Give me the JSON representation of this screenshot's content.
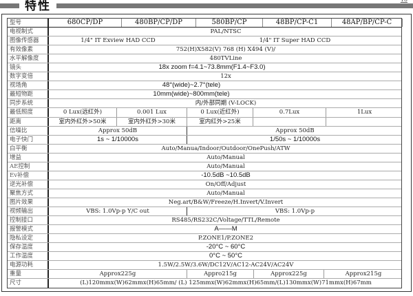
{
  "header": {
    "title": "特性",
    "page_number": "18"
  },
  "rows": [
    {
      "label": "型号",
      "cells": [
        "680CP/DP",
        "480BP/CP/DP",
        "580BP/CP",
        "48BP/CP-C1",
        "48AP/BP/CP-C"
      ]
    },
    {
      "label": "电视制式",
      "cells": [
        "PAL/NTSC"
      ]
    },
    {
      "label": "图像传感器",
      "cells": [
        "1/4\" IT Exview HAD CCD",
        "1/4\" IT Super HAD CCD"
      ]
    },
    {
      "label": "有效像素",
      "cells": [
        "752(H)X582(V)    768 (H) X494 (V)/"
      ]
    },
    {
      "label": "水平解像度",
      "cells": [
        "480TVLine"
      ]
    },
    {
      "label": "镜头",
      "cells": [
        "18x zoom f=4.1~73.8mm(F1.4~F3.0)"
      ]
    },
    {
      "label": "数字变倍",
      "cells": [
        "12x"
      ]
    },
    {
      "label": "视场角",
      "cells": [
        "48°(wide)~2.7°(tele)"
      ]
    },
    {
      "label": "最短物距",
      "cells": [
        "10mm(wide)~800mm(tele)"
      ]
    },
    {
      "label": "同步系统",
      "cells": [
        "内/外部同期 (V-LOCK)"
      ]
    },
    {
      "label": "最低照度",
      "cells": [
        "0 Lux(远红外)",
        "0.001 Lux",
        "0 Lux(近红外)",
        "0.7Lux",
        "1Lux"
      ]
    },
    {
      "label": "距离",
      "cells": [
        "室内外红外>50米",
        "室内外红外>30米",
        "室内红外>25米",
        "",
        ""
      ]
    },
    {
      "label": "信噪比",
      "cells": [
        "Approx 50dB",
        "Approx 50dB"
      ]
    },
    {
      "label": "电子快门",
      "cells": [
        "1s ~ 1/10000s",
        "1/50s ~ 1/10000s"
      ]
    },
    {
      "label": "白平衡",
      "cells": [
        "Auto/Manua/Indoor/Outdoor/OnePush/ATW"
      ]
    },
    {
      "label": "增益",
      "cells": [
        "Auto/Manual"
      ]
    },
    {
      "label": "AE控制",
      "cells": [
        "Auto/Manual"
      ]
    },
    {
      "label": "Ev补偿",
      "cells": [
        "-10.5dB ~10.5dB"
      ]
    },
    {
      "label": "逆光补偿",
      "cells": [
        "On/Off/Adjust"
      ]
    },
    {
      "label": "聚焦方式",
      "cells": [
        "Auto/Manual"
      ]
    },
    {
      "label": "图片效果",
      "cells": [
        "Neg.art/B&W/Freeze/H.Invert/V.Invert"
      ]
    },
    {
      "label": "视频输出",
      "cells": [
        "VBS: 1.0Vp-p Y/C out",
        "VBS: 1.0Vp-p"
      ]
    },
    {
      "label": "控制接口",
      "cells": [
        "RS485/RS232C/Voltage/TTL/Remote"
      ]
    },
    {
      "label": "报警模式",
      "cells": [
        "A——M"
      ]
    },
    {
      "label": "隐私设定",
      "cells": [
        "P.ZONE1/P.ZONE2"
      ]
    },
    {
      "label": "保存温度",
      "cells": [
        "-20°C ~ 60°C"
      ]
    },
    {
      "label": "工作温度",
      "cells": [
        "0°C ~  50°C"
      ]
    },
    {
      "label": "电源功耗",
      "cells": [
        "1.5W/2.5W/3.6W/DC12V/AC12-AC24V/AC24V"
      ]
    },
    {
      "label": "重量",
      "cells": [
        "Approx225g",
        "Appro215g",
        "Approx225g",
        "Approx215g"
      ]
    },
    {
      "label": "尺寸",
      "cells": [
        "(L)120mmx(W)62mmx(H)65mm/ (L) 125mmx(W)62mmx(H)65mm/(L)130mmx(W)71mmx(H)67mm"
      ]
    }
  ]
}
